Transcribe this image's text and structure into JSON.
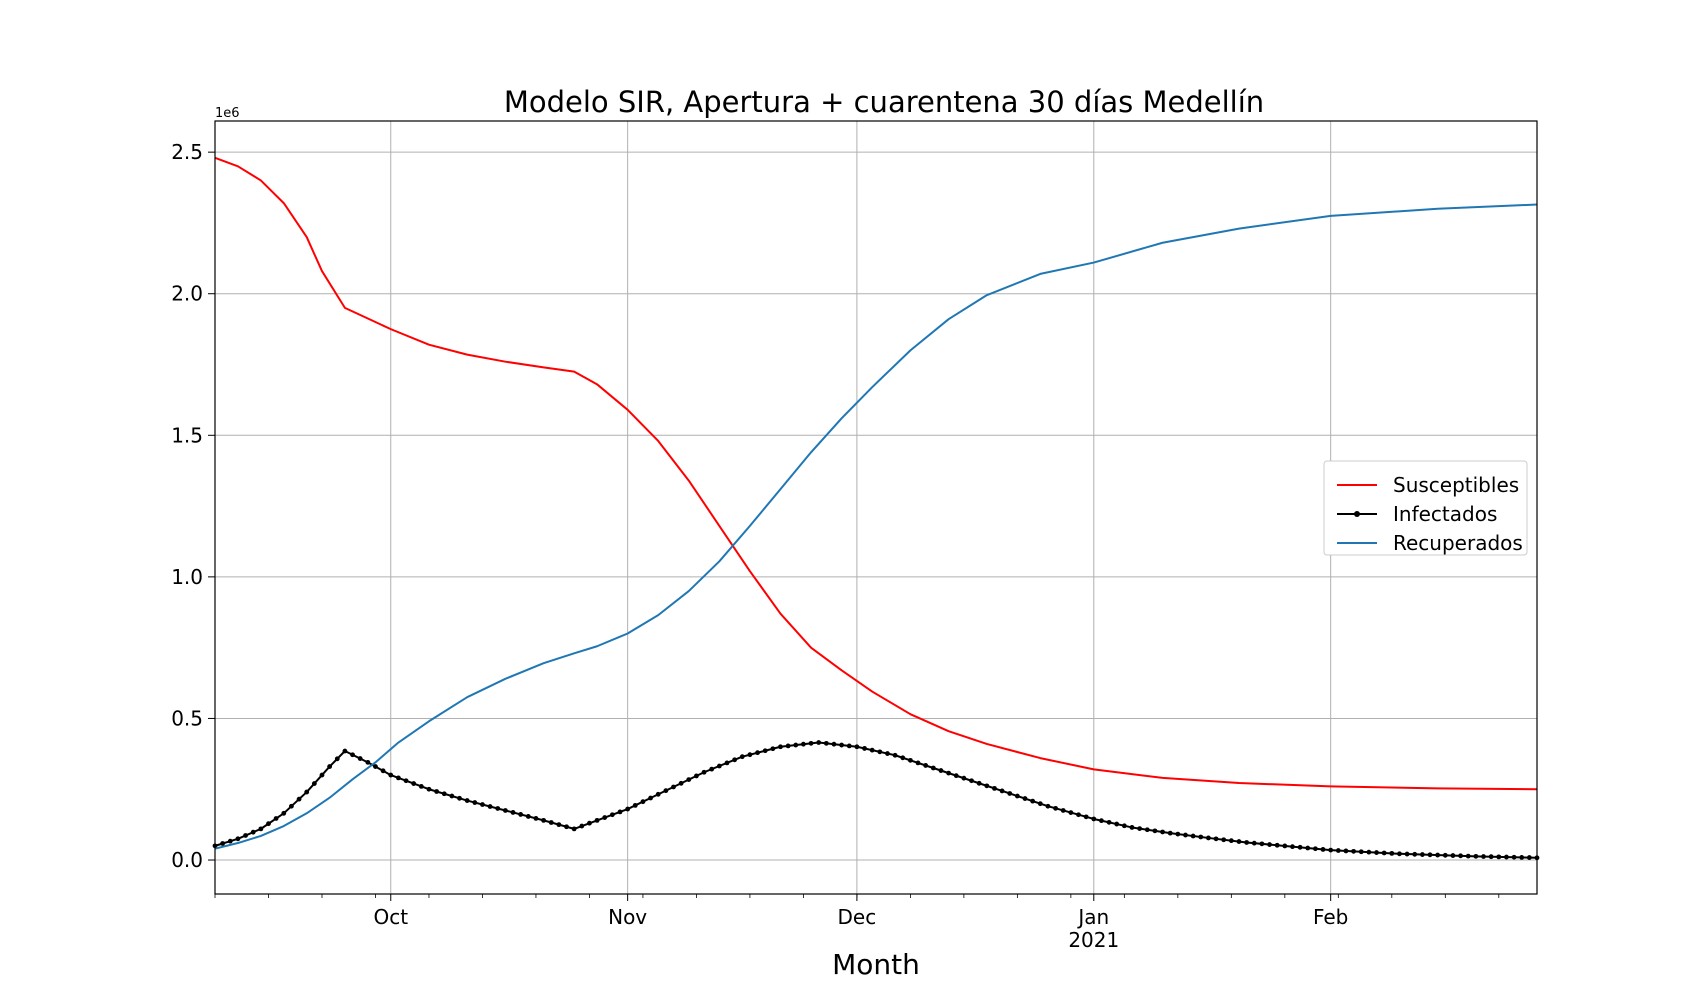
{
  "chart_data": {
    "type": "line",
    "title": "Modelo SIR, Apertura + cuarentena 30 días Medellín",
    "xlabel": "Month",
    "ylabel": "",
    "y_offset_label": "1e6",
    "x_range": [
      "2020-09-08",
      "2021-02-28"
    ],
    "ylim": [
      -0.12,
      2.61
    ],
    "y_ticks": [
      0.0,
      0.5,
      1.0,
      1.5,
      2.0,
      2.5
    ],
    "y_tick_labels": [
      "0.0",
      "0.5",
      "1.0",
      "1.5",
      "2.0",
      "2.5"
    ],
    "x_ticks": [
      {
        "date": "2020-10-01",
        "label": "Oct",
        "sublabel": ""
      },
      {
        "date": "2020-11-01",
        "label": "Nov",
        "sublabel": ""
      },
      {
        "date": "2020-12-01",
        "label": "Dec",
        "sublabel": ""
      },
      {
        "date": "2021-01-01",
        "label": "Jan",
        "sublabel": "2021"
      },
      {
        "date": "2021-02-01",
        "label": "Feb",
        "sublabel": ""
      }
    ],
    "grid": true,
    "legend_position": "center-right",
    "series": [
      {
        "name": "Susceptibles",
        "color": "#ff0000",
        "marker": false,
        "points": [
          [
            "2020-09-08",
            2.48
          ],
          [
            "2020-09-11",
            2.45
          ],
          [
            "2020-09-14",
            2.4
          ],
          [
            "2020-09-17",
            2.32
          ],
          [
            "2020-09-20",
            2.2
          ],
          [
            "2020-09-22",
            2.08
          ],
          [
            "2020-09-25",
            1.95
          ],
          [
            "2020-10-01",
            1.875
          ],
          [
            "2020-10-06",
            1.82
          ],
          [
            "2020-10-11",
            1.785
          ],
          [
            "2020-10-16",
            1.76
          ],
          [
            "2020-10-21",
            1.74
          ],
          [
            "2020-10-25",
            1.725
          ],
          [
            "2020-10-28",
            1.68
          ],
          [
            "2020-11-01",
            1.59
          ],
          [
            "2020-11-05",
            1.48
          ],
          [
            "2020-11-09",
            1.34
          ],
          [
            "2020-11-13",
            1.18
          ],
          [
            "2020-11-17",
            1.02
          ],
          [
            "2020-11-21",
            0.87
          ],
          [
            "2020-11-25",
            0.75
          ],
          [
            "2020-11-29",
            0.67
          ],
          [
            "2020-12-03",
            0.595
          ],
          [
            "2020-12-08",
            0.515
          ],
          [
            "2020-12-13",
            0.455
          ],
          [
            "2020-12-18",
            0.41
          ],
          [
            "2020-12-25",
            0.36
          ],
          [
            "2021-01-01",
            0.32
          ],
          [
            "2021-01-10",
            0.29
          ],
          [
            "2021-01-20",
            0.272
          ],
          [
            "2021-02-01",
            0.26
          ],
          [
            "2021-02-15",
            0.253
          ],
          [
            "2021-02-28",
            0.25
          ]
        ]
      },
      {
        "name": "Infectados",
        "color": "#000000",
        "marker": true,
        "points": [
          [
            "2020-09-08",
            0.05
          ],
          [
            "2020-09-11",
            0.075
          ],
          [
            "2020-09-14",
            0.11
          ],
          [
            "2020-09-17",
            0.165
          ],
          [
            "2020-09-20",
            0.24
          ],
          [
            "2020-09-23",
            0.33
          ],
          [
            "2020-09-25",
            0.385
          ],
          [
            "2020-09-28",
            0.345
          ],
          [
            "2020-10-01",
            0.3
          ],
          [
            "2020-10-06",
            0.25
          ],
          [
            "2020-10-11",
            0.21
          ],
          [
            "2020-10-16",
            0.175
          ],
          [
            "2020-10-21",
            0.14
          ],
          [
            "2020-10-25",
            0.11
          ],
          [
            "2020-10-28",
            0.14
          ],
          [
            "2020-11-01",
            0.18
          ],
          [
            "2020-11-06",
            0.245
          ],
          [
            "2020-11-11",
            0.31
          ],
          [
            "2020-11-16",
            0.365
          ],
          [
            "2020-11-21",
            0.4
          ],
          [
            "2020-11-26",
            0.415
          ],
          [
            "2020-12-01",
            0.4
          ],
          [
            "2020-12-06",
            0.37
          ],
          [
            "2020-12-11",
            0.325
          ],
          [
            "2020-12-16",
            0.28
          ],
          [
            "2020-12-21",
            0.235
          ],
          [
            "2020-12-26",
            0.19
          ],
          [
            "2021-01-01",
            0.145
          ],
          [
            "2021-01-06",
            0.115
          ],
          [
            "2021-01-11",
            0.095
          ],
          [
            "2021-01-16",
            0.078
          ],
          [
            "2021-01-21",
            0.062
          ],
          [
            "2021-02-01",
            0.035
          ],
          [
            "2021-02-10",
            0.022
          ],
          [
            "2021-02-20",
            0.013
          ],
          [
            "2021-02-28",
            0.008
          ]
        ]
      },
      {
        "name": "Recuperados",
        "color": "#1f77b4",
        "marker": false,
        "points": [
          [
            "2020-09-08",
            0.04
          ],
          [
            "2020-09-11",
            0.06
          ],
          [
            "2020-09-14",
            0.085
          ],
          [
            "2020-09-17",
            0.12
          ],
          [
            "2020-09-20",
            0.165
          ],
          [
            "2020-09-23",
            0.22
          ],
          [
            "2020-09-26",
            0.285
          ],
          [
            "2020-09-29",
            0.345
          ],
          [
            "2020-10-02",
            0.415
          ],
          [
            "2020-10-06",
            0.49
          ],
          [
            "2020-10-11",
            0.575
          ],
          [
            "2020-10-16",
            0.64
          ],
          [
            "2020-10-21",
            0.695
          ],
          [
            "2020-10-25",
            0.73
          ],
          [
            "2020-10-28",
            0.755
          ],
          [
            "2020-11-01",
            0.8
          ],
          [
            "2020-11-05",
            0.865
          ],
          [
            "2020-11-09",
            0.95
          ],
          [
            "2020-11-13",
            1.055
          ],
          [
            "2020-11-17",
            1.18
          ],
          [
            "2020-11-21",
            1.31
          ],
          [
            "2020-11-25",
            1.44
          ],
          [
            "2020-11-29",
            1.56
          ],
          [
            "2020-12-03",
            1.67
          ],
          [
            "2020-12-08",
            1.8
          ],
          [
            "2020-12-13",
            1.91
          ],
          [
            "2020-12-18",
            1.995
          ],
          [
            "2020-12-25",
            2.07
          ],
          [
            "2021-01-01",
            2.11
          ],
          [
            "2021-01-10",
            2.18
          ],
          [
            "2021-01-20",
            2.23
          ],
          [
            "2021-02-01",
            2.275
          ],
          [
            "2021-02-15",
            2.3
          ],
          [
            "2021-02-28",
            2.315
          ]
        ]
      }
    ]
  }
}
